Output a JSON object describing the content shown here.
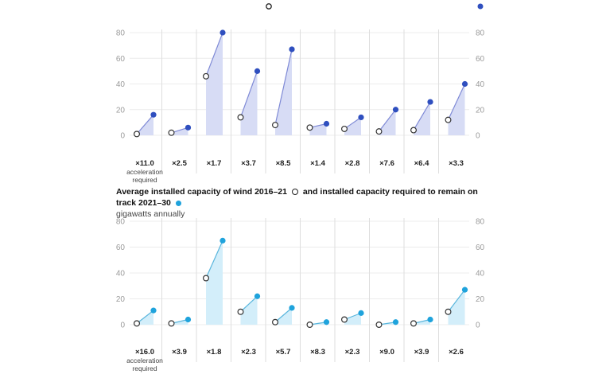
{
  "legend": {
    "open_marker_color": "#ffffff",
    "filled_marker_color": "#2f4fbf"
  },
  "caption": {
    "title_part1": "Average installed capacity of wind 2016–21",
    "title_part2": "and installed capacity required to remain on track 2021–30",
    "unit": "gigawatts annually"
  },
  "chart_data": [
    {
      "type": "line",
      "series": [
        {
          "values": [
            1,
            2,
            46,
            14,
            8,
            6,
            5,
            3,
            4,
            12
          ]
        },
        {
          "values": [
            16,
            6,
            80,
            50,
            67,
            9,
            14,
            20,
            26,
            40
          ]
        }
      ],
      "multipliers": [
        "×11.0",
        "×2.5",
        "×1.7",
        "×3.7",
        "×8.5",
        "×1.4",
        "×2.8",
        "×7.6",
        "×6.4",
        "×3.3"
      ],
      "first_note": [
        "acceleration",
        "required"
      ],
      "y_ticks": [
        "80",
        "60",
        "40",
        "20",
        "0"
      ],
      "ylim": [
        0,
        80
      ],
      "colors": {
        "line": "#7f8ad6",
        "fill": "#d7dcf5",
        "dot": "#2f4fbf"
      },
      "grid": true
    },
    {
      "type": "line",
      "series": [
        {
          "values": [
            1,
            1,
            36,
            10,
            2,
            0,
            4,
            0,
            1,
            10
          ]
        },
        {
          "values": [
            11,
            4,
            65,
            22,
            13,
            2,
            9,
            2,
            4,
            27
          ]
        }
      ],
      "multipliers": [
        "×16.0",
        "×3.9",
        "×1.8",
        "×2.3",
        "×5.7",
        "×8.3",
        "×2.3",
        "×9.0",
        "×3.9",
        "×2.6"
      ],
      "first_note": [
        "acceleration",
        "required"
      ],
      "y_ticks": [
        "80",
        "60",
        "40",
        "20",
        "0"
      ],
      "ylim": [
        0,
        80
      ],
      "colors": {
        "line": "#5ab6dd",
        "fill": "#d3eefa",
        "dot": "#1fa3dc"
      },
      "grid": true
    }
  ]
}
